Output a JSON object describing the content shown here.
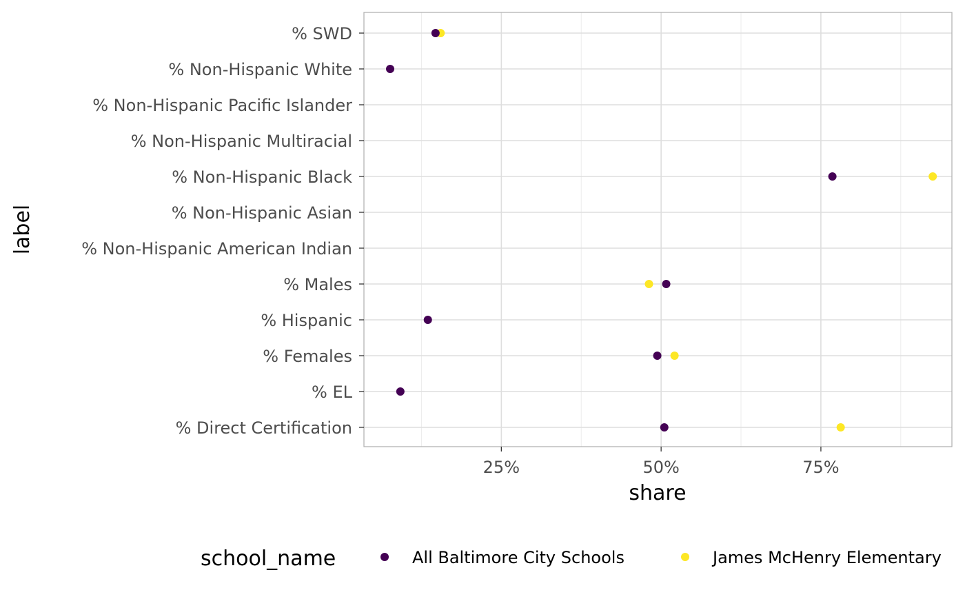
{
  "chart_data": {
    "type": "scatter",
    "xlabel": "share",
    "ylabel": "label",
    "xlim": [
      0.035,
      0.955
    ],
    "x_ticks": [
      0.25,
      0.5,
      0.75
    ],
    "x_tick_labels": [
      "25%",
      "50%",
      "75%"
    ],
    "categories": [
      "% SWD",
      "% Non-Hispanic White",
      "% Non-Hispanic Pacific Islander",
      "% Non-Hispanic Multiracial",
      "% Non-Hispanic Black",
      "% Non-Hispanic Asian",
      "% Non-Hispanic American Indian",
      "% Males",
      "% Hispanic",
      "% Females",
      "% EL",
      "% Direct Certification"
    ],
    "legend": {
      "title": "school_name",
      "position": "bottom"
    },
    "grid": true,
    "series": [
      {
        "name": "All Baltimore City Schools",
        "color": "#440154",
        "values": [
          0.147,
          0.076,
          null,
          null,
          0.768,
          null,
          null,
          0.508,
          0.135,
          0.494,
          0.092,
          0.505
        ]
      },
      {
        "name": "James McHenry Elementary",
        "color": "#FDE725",
        "values": [
          0.155,
          null,
          null,
          null,
          0.925,
          null,
          null,
          0.481,
          null,
          0.521,
          null,
          0.781
        ]
      }
    ]
  }
}
